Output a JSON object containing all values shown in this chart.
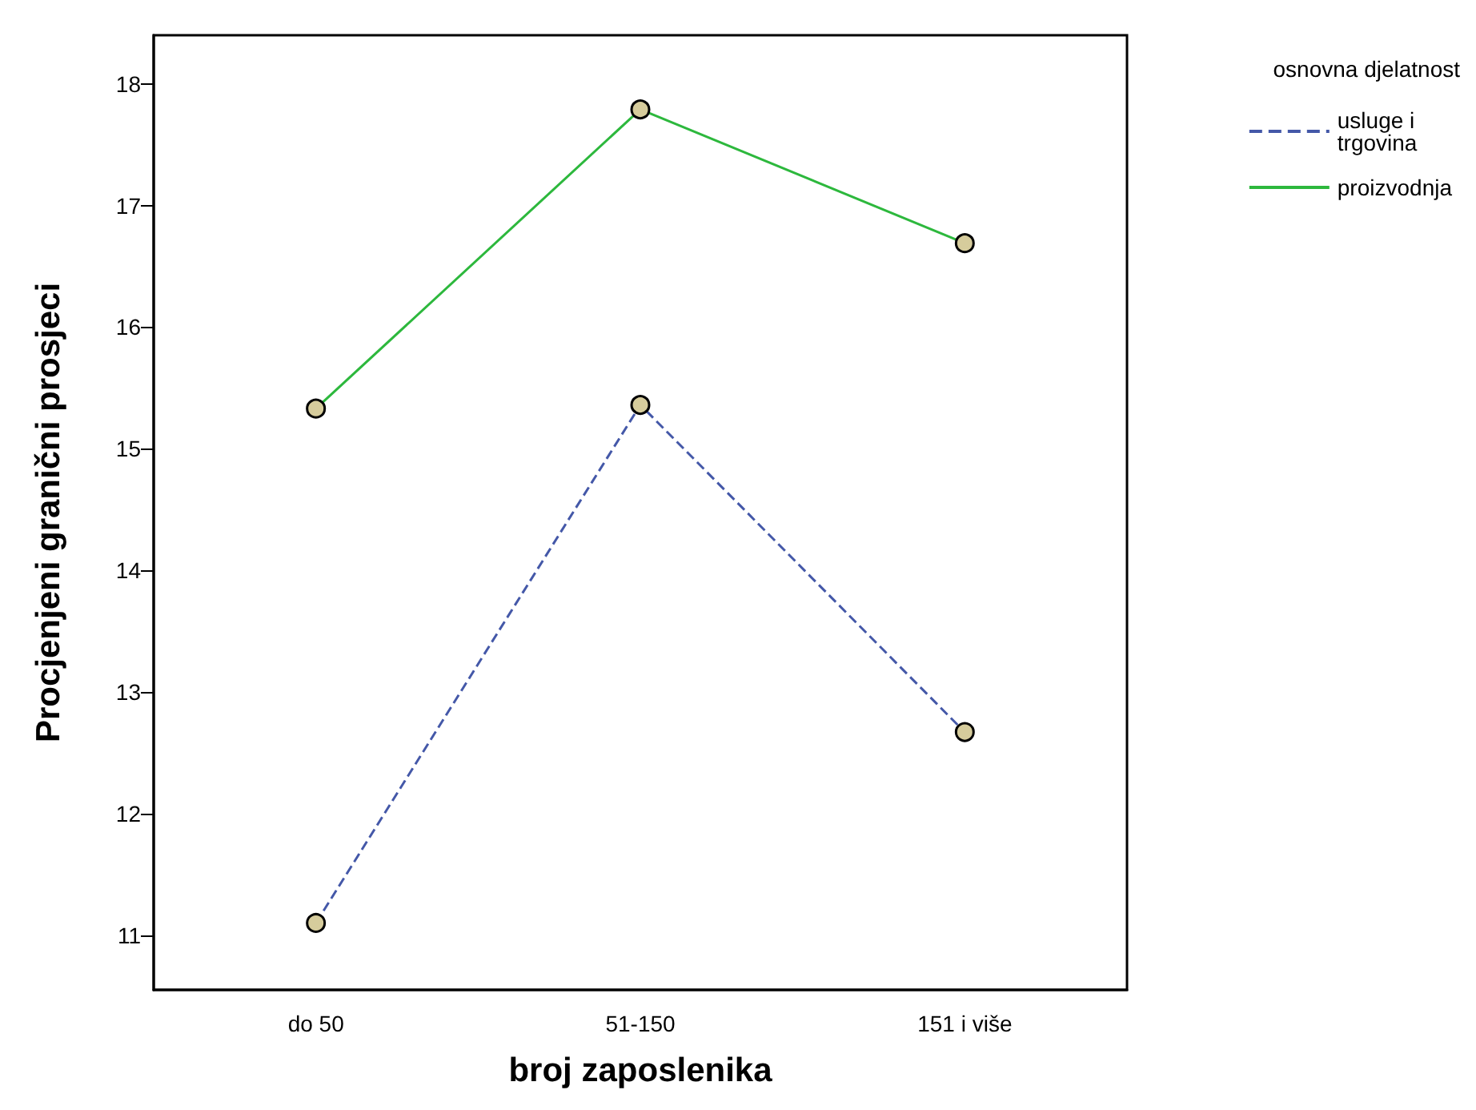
{
  "chart_data": {
    "type": "line",
    "xlabel": "broj zaposlenika",
    "ylabel": "Procjenjeni granični prosjeci",
    "legend_title": "osnovna djelatnost",
    "categories": [
      "do 50",
      "51-150",
      "151 i više"
    ],
    "series": [
      {
        "name": "usluge i trgovina",
        "color": "#4458a8",
        "line_style": "dashed",
        "values": [
          11.1,
          15.36,
          12.67
        ]
      },
      {
        "name": "proizvodnja",
        "color": "#2db83d",
        "line_style": "solid",
        "values": [
          15.33,
          17.79,
          16.69
        ]
      }
    ],
    "ylim": [
      10.55,
      18.4
    ],
    "yticks": [
      11,
      12,
      13,
      14,
      15,
      16,
      17,
      18
    ],
    "grid": false,
    "legend": "top right",
    "marker": "circle"
  }
}
